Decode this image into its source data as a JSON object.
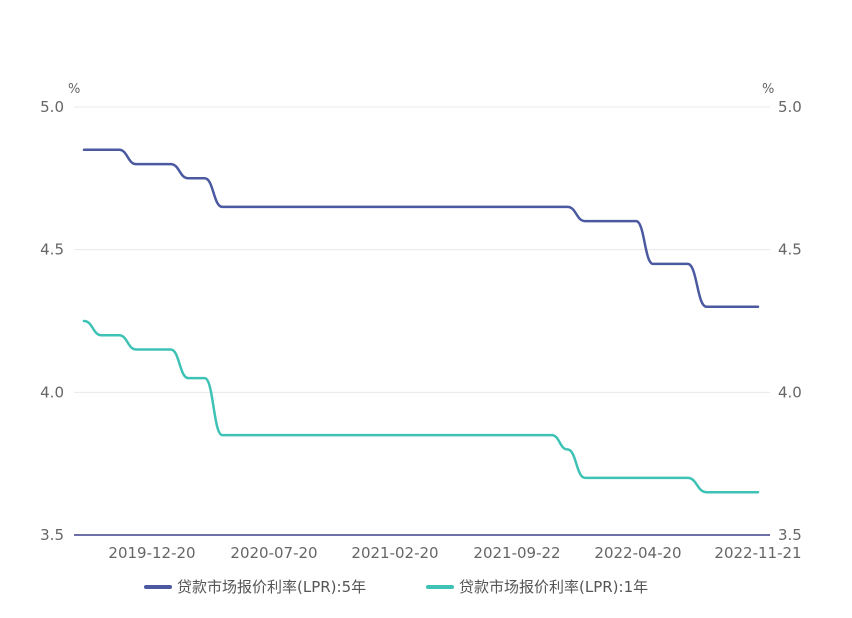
{
  "chart_data": {
    "type": "line",
    "y_unit_left": "%",
    "y_unit_right": "%",
    "ylim": [
      3.5,
      5.0
    ],
    "y_ticks": [
      "5.0",
      "4.5",
      "4.0",
      "3.5"
    ],
    "x_tick_labels": [
      "2019-12-20",
      "2020-07-20",
      "2021-02-20",
      "2021-09-22",
      "2022-04-20",
      "2022-11-21"
    ],
    "x_domain": [
      "2019-08-20",
      "2022-11-21"
    ],
    "grid": true,
    "legend_position": "bottom",
    "series": [
      {
        "name": "贷款市场报价利率(LPR):5年",
        "color": "#4b5aa0",
        "points": [
          [
            "2019-08-20",
            4.85
          ],
          [
            "2019-10-21",
            4.85
          ],
          [
            "2019-11-20",
            4.8
          ],
          [
            "2020-01-20",
            4.8
          ],
          [
            "2020-02-20",
            4.75
          ],
          [
            "2020-03-20",
            4.75
          ],
          [
            "2020-04-20",
            4.65
          ],
          [
            "2021-11-22",
            4.65
          ],
          [
            "2021-12-20",
            4.65
          ],
          [
            "2022-01-20",
            4.6
          ],
          [
            "2022-04-20",
            4.6
          ],
          [
            "2022-05-20",
            4.45
          ],
          [
            "2022-07-20",
            4.45
          ],
          [
            "2022-08-22",
            4.3
          ],
          [
            "2022-11-21",
            4.3
          ]
        ]
      },
      {
        "name": "贷款市场报价利率(LPR):1年",
        "color": "#3ec2b5",
        "points": [
          [
            "2019-08-20",
            4.25
          ],
          [
            "2019-09-20",
            4.2
          ],
          [
            "2019-10-21",
            4.2
          ],
          [
            "2019-11-20",
            4.15
          ],
          [
            "2020-01-20",
            4.15
          ],
          [
            "2020-02-20",
            4.05
          ],
          [
            "2020-03-20",
            4.05
          ],
          [
            "2020-04-20",
            3.85
          ],
          [
            "2021-11-22",
            3.85
          ],
          [
            "2021-12-20",
            3.8
          ],
          [
            "2022-01-20",
            3.7
          ],
          [
            "2022-07-20",
            3.7
          ],
          [
            "2022-08-22",
            3.65
          ],
          [
            "2022-11-21",
            3.65
          ]
        ]
      }
    ]
  }
}
